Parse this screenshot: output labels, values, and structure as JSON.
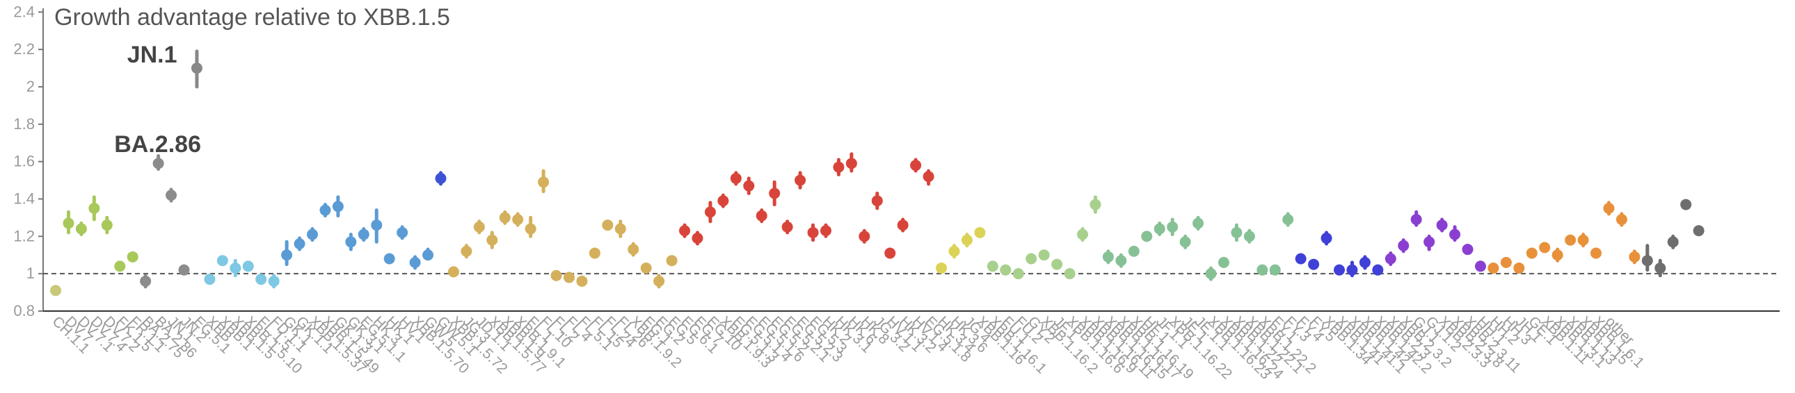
{
  "chart_data": {
    "type": "scatter",
    "title": "Growth advantage relative to XBB.1.5",
    "xlabel": "",
    "ylabel": "",
    "ylim": [
      0.8,
      2.42
    ],
    "yticks": [
      0.8,
      1,
      1.2,
      1.4,
      1.6,
      1.8,
      2,
      2.2,
      2.4
    ],
    "ytick_labels": [
      "0.8",
      "1",
      "1.2",
      "1.4",
      "1.6",
      "1.8",
      "2",
      "2.2",
      "2.4"
    ],
    "reference_line": 1,
    "grid": false,
    "legend": "none",
    "error_bars": true,
    "annotations": [
      {
        "text": "BA.2.86",
        "x": 5,
        "y": 1.65
      },
      {
        "text": "JN.1",
        "x": 6,
        "y": 2.13
      }
    ],
    "categories": [
      "CH.1.1",
      "DV.7",
      "DV.7.1",
      "DV.7.4",
      "DV.7.2",
      "FK.1.5",
      "FR.1.1",
      "BA.2.75",
      "BA.2.86",
      "JN.1",
      "JN.2",
      "EG.5.1",
      "XBB",
      "XBB.1",
      "XBB.1.5",
      "XBB.1.5.10",
      "FL.1.5",
      "FD.1.1",
      "GK.1",
      "GK.1.1",
      "XBB.1.5.37",
      "XBB.1.5.49",
      "GK.1.3",
      "GK.3.1",
      "EG.5.1.1",
      "HK.3",
      "HK.1",
      "HV.1",
      "XBB.1.5.70",
      "GW.5",
      "GW.5.1",
      "XBB.1.5.72",
      "JG.3",
      "JD.1.1",
      "XBB.1.5.77",
      "XBB.1.9",
      "XBB.1.9.1",
      "FL.1",
      "FL.10",
      "FL.2",
      "FL.4",
      "FL.5.1",
      "FL.15",
      "FL.24",
      "FL.26",
      "XBB.1.9.2",
      "EG.1",
      "EG.2",
      "EG.5",
      "EG.6.1",
      "EG.7",
      "EG.10",
      "XBB.1.9.3",
      "EG.5.1.3",
      "EG.5.1.4",
      "EG.5.1.6",
      "EG.5.2",
      "EG.5.2.1",
      "EG.5.2.3",
      "EG.5.3",
      "HK.2",
      "HK.3.1",
      "HK.6",
      "HK.8",
      "JG.3.2",
      "HV.1.1",
      "HK.3.2",
      "HV.1.4",
      "EG.5.1.8",
      "HK.3.4",
      "HK.3.6",
      "JG.4",
      "XBB.1.16",
      "XBB.1.16.1",
      "FU.1",
      "FU.2",
      "GY.2",
      "XBB.1.16.2",
      "JF.1",
      "XBB.1.16.6",
      "XBB.1.16.9",
      "XBB.1.16.11",
      "XBB.1.16.15",
      "XBB.1.16.17",
      "XBB.1.16.19",
      "HF.1",
      "JF.1.1",
      "XBB.1.16.22",
      "JE.1",
      "JE.1.1",
      "XBB.1.16.23",
      "XBB.1.16.24",
      "XBB.1.22",
      "XBB.1.22.1",
      "XBB.1.22.2",
      "FY.1",
      "FY.3",
      "FY.4",
      "FY.5",
      "XBB.1.34",
      "XBB.1.41",
      "XBB.1.41.1",
      "XBB.1.42",
      "XBB.1.42.2",
      "XBB.2.3",
      "XBB.2.3.2",
      "GJ.1",
      "GJ.1.2",
      "XBB.2.3.3",
      "XBB.2.3.8",
      "XBB.2.3.11",
      "HH.1",
      "HH.2",
      "HH.3",
      "JH.1",
      "GE.1",
      "XBB.1.11",
      "XBB.1.3.1",
      "XBB.1.13",
      "XBB.1.15",
      "XBB.1.6.1",
      "other"
    ],
    "series": [
      {
        "color": "#c8c87a",
        "values": [
          0.91
        ],
        "lower": [
          0.89
        ],
        "upper": [
          0.93
        ]
      },
      {
        "color": "#a8c85a",
        "values": [
          1.27,
          1.24,
          1.35,
          1.26,
          1.04,
          1.09
        ],
        "lower": [
          1.22,
          1.21,
          1.29,
          1.22,
          1.02,
          1.07
        ],
        "upper": [
          1.33,
          1.27,
          1.41,
          1.3,
          1.06,
          1.11
        ]
      },
      {
        "color": "#8c8c8c",
        "values": [
          0.96,
          1.59,
          1.42,
          1.02
        ],
        "lower": [
          0.93,
          1.56,
          1.39,
          1.0
        ],
        "upper": [
          0.99,
          1.63,
          1.45,
          1.04
        ]
      },
      {
        "color": "#888888",
        "values": [
          2.1
        ],
        "lower": [
          2.0
        ],
        "upper": [
          2.19
        ]
      },
      {
        "color": "#7ec8e3",
        "values": [
          0.97,
          1.07,
          1.03,
          1.04,
          0.97,
          0.96
        ],
        "lower": [
          0.95,
          1.05,
          0.99,
          1.02,
          0.95,
          0.93
        ],
        "upper": [
          0.99,
          1.09,
          1.07,
          1.06,
          0.99,
          0.99
        ]
      },
      {
        "color": "#5b9bd5",
        "values": [
          1.1,
          1.16,
          1.21,
          1.34,
          1.36,
          1.17,
          1.21,
          1.26,
          1.08,
          1.22,
          1.06,
          1.1
        ],
        "lower": [
          1.05,
          1.13,
          1.18,
          1.31,
          1.31,
          1.13,
          1.18,
          1.17,
          1.06,
          1.19,
          1.03,
          1.08
        ],
        "upper": [
          1.17,
          1.19,
          1.24,
          1.37,
          1.41,
          1.21,
          1.24,
          1.34,
          1.1,
          1.25,
          1.09,
          1.13
        ]
      },
      {
        "color": "#3d52d5",
        "values": [
          1.51
        ],
        "lower": [
          1.48
        ],
        "upper": [
          1.54
        ]
      },
      {
        "color": "#d4b05c",
        "values": [
          1.01,
          1.12,
          1.25,
          1.18,
          1.3,
          1.29,
          1.24,
          1.49,
          0.99,
          0.98,
          0.96,
          1.11,
          1.26,
          1.24,
          1.13,
          1.03,
          0.96,
          1.07
        ],
        "lower": [
          0.99,
          1.09,
          1.22,
          1.14,
          1.27,
          1.26,
          1.2,
          1.44,
          0.97,
          0.96,
          0.94,
          1.09,
          1.24,
          1.2,
          1.1,
          1.01,
          0.93,
          1.05
        ],
        "upper": [
          1.03,
          1.15,
          1.28,
          1.22,
          1.33,
          1.32,
          1.3,
          1.55,
          1.01,
          1.0,
          0.98,
          1.13,
          1.28,
          1.28,
          1.16,
          1.05,
          0.99,
          1.09
        ]
      },
      {
        "color": "#d9443a",
        "values": [
          1.23,
          1.19,
          1.33,
          1.39,
          1.51,
          1.47,
          1.31,
          1.43,
          1.25,
          1.5,
          1.22,
          1.23,
          1.57,
          1.59,
          1.2,
          1.39,
          1.11,
          1.26,
          1.58,
          1.52
        ],
        "lower": [
          1.2,
          1.16,
          1.28,
          1.36,
          1.48,
          1.43,
          1.28,
          1.37,
          1.22,
          1.46,
          1.18,
          1.2,
          1.53,
          1.55,
          1.17,
          1.35,
          1.09,
          1.23,
          1.55,
          1.48
        ],
        "upper": [
          1.26,
          1.22,
          1.38,
          1.42,
          1.54,
          1.51,
          1.34,
          1.49,
          1.28,
          1.54,
          1.26,
          1.26,
          1.61,
          1.64,
          1.23,
          1.43,
          1.13,
          1.29,
          1.61,
          1.55
        ]
      },
      {
        "color": "#dcd256",
        "values": [
          1.03,
          1.12,
          1.18,
          1.22
        ],
        "lower": [
          1.01,
          1.09,
          1.15,
          1.2
        ],
        "upper": [
          1.05,
          1.15,
          1.21,
          1.24
        ]
      },
      {
        "color": "#a8d08d",
        "values": [
          1.04,
          1.02,
          1.0,
          1.08,
          1.1,
          1.05,
          1.0,
          1.21,
          1.37
        ],
        "lower": [
          1.02,
          1.0,
          0.98,
          1.06,
          1.08,
          1.03,
          0.98,
          1.18,
          1.33
        ],
        "upper": [
          1.06,
          1.04,
          1.02,
          1.1,
          1.12,
          1.07,
          1.02,
          1.24,
          1.41
        ]
      },
      {
        "color": "#86c196",
        "values": [
          1.09,
          1.07,
          1.12,
          1.2,
          1.24,
          1.25,
          1.17,
          1.27,
          1.0,
          1.06,
          1.22,
          1.2,
          1.02,
          1.02,
          1.29
        ],
        "lower": [
          1.06,
          1.04,
          1.1,
          1.18,
          1.21,
          1.21,
          1.14,
          1.24,
          0.97,
          1.04,
          1.18,
          1.17,
          1.0,
          1.0,
          1.26
        ],
        "upper": [
          1.12,
          1.1,
          1.14,
          1.22,
          1.27,
          1.29,
          1.2,
          1.3,
          1.03,
          1.08,
          1.26,
          1.23,
          1.04,
          1.04,
          1.32
        ]
      },
      {
        "color": "#4040d8",
        "values": [
          1.08,
          1.05,
          1.19,
          1.02,
          1.02,
          1.06,
          1.02
        ],
        "lower": [
          1.06,
          1.03,
          1.16,
          1.0,
          0.99,
          1.03,
          1.0
        ],
        "upper": [
          1.1,
          1.07,
          1.22,
          1.04,
          1.06,
          1.09,
          1.04
        ]
      },
      {
        "color": "#8a3fd1",
        "values": [
          1.08,
          1.15,
          1.29,
          1.17,
          1.26,
          1.21,
          1.13,
          1.04
        ],
        "lower": [
          1.05,
          1.12,
          1.26,
          1.13,
          1.23,
          1.18,
          1.11,
          1.02
        ],
        "upper": [
          1.11,
          1.18,
          1.33,
          1.2,
          1.29,
          1.25,
          1.15,
          1.06
        ]
      },
      {
        "color": "#e8913a",
        "values": [
          1.03,
          1.06,
          1.03,
          1.11,
          1.14,
          1.1,
          1.18,
          1.18,
          1.11,
          1.35,
          1.29,
          1.09
        ],
        "lower": [
          1.01,
          1.04,
          1.01,
          1.09,
          1.12,
          1.07,
          1.16,
          1.15,
          1.09,
          1.32,
          1.26,
          1.06
        ],
        "upper": [
          1.05,
          1.08,
          1.05,
          1.13,
          1.16,
          1.13,
          1.2,
          1.21,
          1.13,
          1.38,
          1.32,
          1.12
        ]
      },
      {
        "color": "#6e6e6e",
        "values": [
          1.07,
          1.03,
          1.17,
          1.37,
          1.23
        ],
        "lower": [
          1.02,
          0.99,
          1.14,
          1.35,
          1.21
        ],
        "upper": [
          1.15,
          1.07,
          1.2,
          1.39,
          1.25
        ]
      }
    ]
  }
}
